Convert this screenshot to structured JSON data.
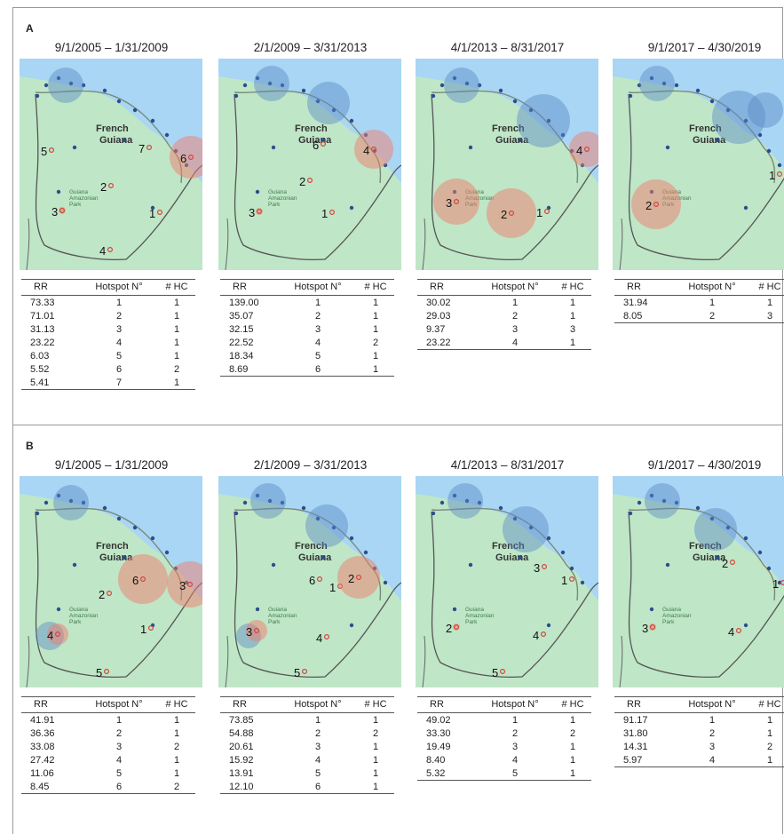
{
  "columns_header": {
    "rr": "RR",
    "hotspot": "Hotspot N°",
    "hc": "# HC"
  },
  "map_labels": {
    "country": "French",
    "country2": "Guiana",
    "park": "Guiana\nAmazonian\nPark"
  },
  "colors": {
    "sea": "#a8d6f4",
    "land": "#bfe6c7",
    "road": "#7a8a7a",
    "hotspot_red": "#f27c6e",
    "hotspot_blue": "#5a8ac6",
    "site_dot": "#2a4f8f"
  },
  "sections": [
    {
      "label": "A",
      "panels": [
        {
          "title": "9/1/2005 – 1/31/2009",
          "rows": [
            [
              "73.33",
              "1",
              "1"
            ],
            [
              "71.01",
              "2",
              "1"
            ],
            [
              "31.13",
              "3",
              "1"
            ],
            [
              "23.22",
              "4",
              "1"
            ],
            [
              "6.03",
              "5",
              "1"
            ],
            [
              "5.52",
              "6",
              "2"
            ],
            [
              "5.41",
              "7",
              "1"
            ]
          ],
          "hotspots": [
            {
              "n": "1"
            },
            {
              "n": "2"
            },
            {
              "n": "3"
            },
            {
              "n": "4"
            },
            {
              "n": "5"
            },
            {
              "n": "6"
            },
            {
              "n": "7"
            }
          ]
        },
        {
          "title": "2/1/2009 – 3/31/2013",
          "rows": [
            [
              "139.00",
              "1",
              "1"
            ],
            [
              "35.07",
              "2",
              "1"
            ],
            [
              "32.15",
              "3",
              "1"
            ],
            [
              "22.52",
              "4",
              "2"
            ],
            [
              "18.34",
              "5",
              "1"
            ],
            [
              "8.69",
              "6",
              "1"
            ]
          ],
          "hotspots": [
            {
              "n": "1"
            },
            {
              "n": "2"
            },
            {
              "n": "3"
            },
            {
              "n": "4"
            },
            {
              "n": "5"
            },
            {
              "n": "6"
            }
          ]
        },
        {
          "title": "4/1/2013 – 8/31/2017",
          "rows": [
            [
              "30.02",
              "1",
              "1"
            ],
            [
              "29.03",
              "2",
              "1"
            ],
            [
              "9.37",
              "3",
              "3"
            ],
            [
              "23.22",
              "4",
              "1"
            ]
          ],
          "hotspots": [
            {
              "n": "1"
            },
            {
              "n": "2"
            },
            {
              "n": "3"
            },
            {
              "n": "4"
            }
          ]
        },
        {
          "title": "9/1/2017 – 4/30/2019",
          "rows": [
            [
              "31.94",
              "1",
              "1"
            ],
            [
              "8.05",
              "2",
              "3"
            ]
          ],
          "hotspots": [
            {
              "n": "1"
            },
            {
              "n": "2"
            }
          ]
        }
      ]
    },
    {
      "label": "B",
      "panels": [
        {
          "title": "9/1/2005 – 1/31/2009",
          "rows": [
            [
              "41.91",
              "1",
              "1"
            ],
            [
              "36.36",
              "2",
              "1"
            ],
            [
              "33.08",
              "3",
              "2"
            ],
            [
              "27.42",
              "4",
              "1"
            ],
            [
              "11.06",
              "5",
              "1"
            ],
            [
              "8.45",
              "6",
              "2"
            ]
          ],
          "hotspots": [
            {
              "n": "1"
            },
            {
              "n": "2"
            },
            {
              "n": "3"
            },
            {
              "n": "4"
            },
            {
              "n": "5"
            },
            {
              "n": "6"
            }
          ]
        },
        {
          "title": "2/1/2009 – 3/31/2013",
          "rows": [
            [
              "73.85",
              "1",
              "1"
            ],
            [
              "54.88",
              "2",
              "2"
            ],
            [
              "20.61",
              "3",
              "1"
            ],
            [
              "15.92",
              "4",
              "1"
            ],
            [
              "13.91",
              "5",
              "1"
            ],
            [
              "12.10",
              "6",
              "1"
            ]
          ],
          "hotspots": [
            {
              "n": "1"
            },
            {
              "n": "2"
            },
            {
              "n": "3"
            },
            {
              "n": "4"
            },
            {
              "n": "5"
            },
            {
              "n": "6"
            }
          ]
        },
        {
          "title": "4/1/2013 – 8/31/2017",
          "rows": [
            [
              "49.02",
              "1",
              "1"
            ],
            [
              "33.30",
              "2",
              "2"
            ],
            [
              "19.49",
              "3",
              "1"
            ],
            [
              "8.40",
              "4",
              "1"
            ],
            [
              "5.32",
              "5",
              "1"
            ]
          ],
          "hotspots": [
            {
              "n": "1"
            },
            {
              "n": "2"
            },
            {
              "n": "3"
            },
            {
              "n": "4"
            },
            {
              "n": "5"
            }
          ]
        },
        {
          "title": "9/1/2017 – 4/30/2019",
          "rows": [
            [
              "91.17",
              "1",
              "1"
            ],
            [
              "31.80",
              "2",
              "1"
            ],
            [
              "14.31",
              "3",
              "2"
            ],
            [
              "5.97",
              "4",
              "1"
            ]
          ],
          "hotspots": [
            {
              "n": "1"
            },
            {
              "n": "2"
            },
            {
              "n": "3"
            },
            {
              "n": "4"
            }
          ]
        }
      ]
    }
  ]
}
